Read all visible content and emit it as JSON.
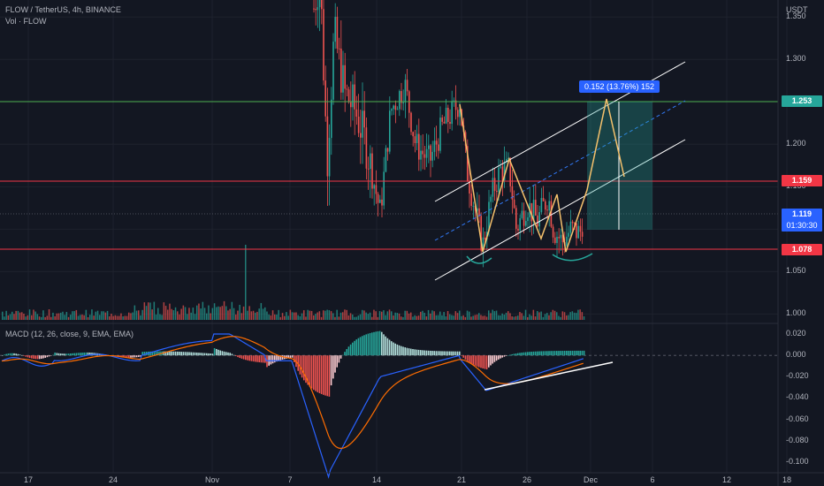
{
  "header": {
    "symbol_line": "FLOW / TetherUS, 4h, BINANCE",
    "volume_line": "Vol · FLOW",
    "macd_line": "MACD (12, 26, close, 9, EMA, EMA)"
  },
  "price_axis": {
    "currency": "USDT",
    "ticks": [
      "1.350",
      "1.300",
      "1.200",
      "1.150",
      "1.100",
      "1.050",
      "1.000"
    ],
    "tick_values": [
      1.35,
      1.3,
      1.2,
      1.15,
      1.1,
      1.05,
      1.0
    ]
  },
  "macd_axis": {
    "ticks": [
      "0.020",
      "0.000",
      "-0.020",
      "-0.040",
      "-0.060",
      "-0.080",
      "-0.100"
    ],
    "tick_values": [
      0.02,
      0.0,
      -0.02,
      -0.04,
      -0.06,
      -0.08,
      -0.1
    ]
  },
  "time_axis": {
    "ticks": [
      "17",
      "24",
      "Nov",
      "7",
      "14",
      "21",
      "26",
      "Dec",
      "6",
      "12",
      "18"
    ]
  },
  "price_tags": {
    "upper_resistance": {
      "label": "1.253",
      "color": "#26a69a"
    },
    "mid_resistance": {
      "label": "1.159",
      "color": "#f23645"
    },
    "current": {
      "label": "1.119",
      "countdown": "01:30:30",
      "color": "#2962ff"
    },
    "support": {
      "label": "1.078",
      "color": "#f23645"
    }
  },
  "measure_label": "0.152 (13.76%) 152",
  "colors": {
    "background": "#131722",
    "up": "#26a69a",
    "down": "#ef5350",
    "pattern": "#f5c16c",
    "channel": "#ffffff",
    "macd": "#2962ff",
    "signal": "#ff6d00",
    "resistance_green": "#4caf50",
    "resistance_red": "#f23645"
  },
  "chart_data": {
    "type": "candlestick",
    "symbol": "FLOW/USDT",
    "interval": "4h",
    "exchange": "BINANCE",
    "ylim": [
      0.99,
      1.37
    ],
    "horizontal_levels": [
      1.253,
      1.159,
      1.078
    ],
    "current_price": 1.119,
    "measured_move": {
      "from": 1.1,
      "to": 1.253,
      "change": 0.152,
      "percent": 13.76
    },
    "macd_ylim": [
      -0.11,
      0.025
    ]
  }
}
